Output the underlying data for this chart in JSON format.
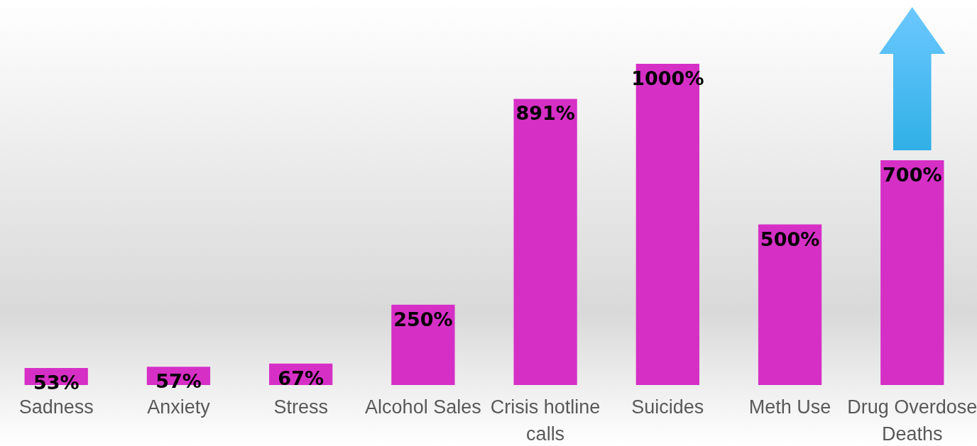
{
  "chart_data": {
    "type": "bar",
    "categories": [
      "Sadness",
      "Anxiety",
      "Stress",
      "Alcohol Sales",
      "Crisis hotline calls",
      "Suicides",
      "Meth Use",
      "Drug Overdose Deaths"
    ],
    "values": [
      53,
      57,
      67,
      250,
      891,
      1000,
      500,
      700
    ],
    "color": "#d62fc6",
    "value_labels": [
      "53%",
      "57%",
      "67%",
      "250%",
      "891%",
      "1000%",
      "500%",
      "700%"
    ],
    "grid": false
  }
}
